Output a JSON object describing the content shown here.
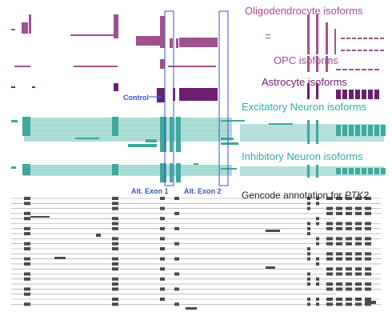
{
  "colors": {
    "oligodendrocyte": "#a2518f",
    "opc": "#a2518f",
    "astrocyte": "#6b1f6e",
    "excitatory": "#3ea99c",
    "excitatory_light": "#b5e0db",
    "inhibitory": "#3ea99c",
    "inhibitory_light": "#b5e0db",
    "gencode": "#4a4a4a",
    "highlight_box": "#3a55c4"
  },
  "groups": {
    "oligodendrocyte": "Oligodendrocyte isoforms",
    "opc": "OPC isoforms",
    "astrocyte": "Astrocyte isoforms",
    "excitatory": "Excitatory Neuron isoforms",
    "inhibitory": "Inhibitory Neuron isoforms"
  },
  "annotations": {
    "control": "Control",
    "alt_exon_1": "Alt. Exon 1",
    "alt_exon_2": "Alt. Exon 2"
  },
  "gencode": {
    "prefix": "Gencode annotation for ",
    "gene": "PTK2"
  }
}
